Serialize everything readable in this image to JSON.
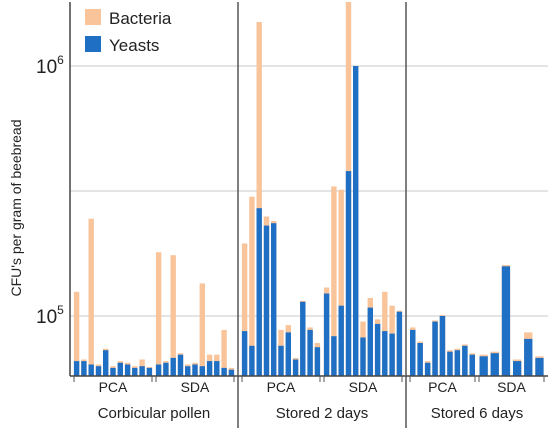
{
  "chart_data": {
    "type": "bar",
    "stacked": true,
    "y_scale": "log",
    "ylabel": "CFU's per gram of beebread",
    "yticks": [
      {
        "value": 100000,
        "base": "10",
        "exp": "5"
      },
      {
        "value": 1000000,
        "base": "10",
        "exp": "6"
      }
    ],
    "ylim": [
      60000,
      2000000
    ],
    "grid": true,
    "legend_position": "top-left",
    "colors": {
      "bacteria": "#F9C49A",
      "yeasts": "#1F6FC5"
    },
    "series": [
      {
        "name": "Bacteria",
        "color": "#F9C49A"
      },
      {
        "name": "Yeasts",
        "color": "#1F6FC5"
      }
    ],
    "groups": [
      {
        "name": "Corbicular pollen",
        "subgroups": [
          {
            "name": "PCA",
            "bars": [
              {
                "total": 125000,
                "yeasts": 66000
              },
              {
                "total": 67000,
                "yeasts": 66000
              },
              {
                "total": 245000,
                "yeasts": 64000
              },
              {
                "total": 64000,
                "yeasts": 63000
              },
              {
                "total": 74000,
                "yeasts": 73000
              },
              {
                "total": 63000,
                "yeasts": 62000
              },
              {
                "total": 66000,
                "yeasts": 65000
              },
              {
                "total": 65000,
                "yeasts": 64000
              },
              {
                "total": 63000,
                "yeasts": 62000
              },
              {
                "total": 67000,
                "yeasts": 63000
              },
              {
                "total": 62500,
                "yeasts": 62000
              }
            ]
          },
          {
            "name": "SDA",
            "bars": [
              {
                "total": 180000,
                "yeasts": 64000
              },
              {
                "total": 66000,
                "yeasts": 65000
              },
              {
                "total": 175000,
                "yeasts": 68000
              },
              {
                "total": 71000,
                "yeasts": 70000
              },
              {
                "total": 64000,
                "yeasts": 63000
              },
              {
                "total": 65000,
                "yeasts": 64000
              },
              {
                "total": 135000,
                "yeasts": 63000
              },
              {
                "total": 70000,
                "yeasts": 66000
              },
              {
                "total": 70000,
                "yeasts": 66000
              },
              {
                "total": 88000,
                "yeasts": 62000
              },
              {
                "total": 62000,
                "yeasts": 61000
              }
            ]
          }
        ]
      },
      {
        "name": "Stored 2 days",
        "subgroups": [
          {
            "name": "PCA",
            "bars": [
              {
                "total": 195000,
                "yeasts": 87000
              },
              {
                "total": 300000,
                "yeasts": 76000
              },
              {
                "total": 1500000,
                "yeasts": 270000
              },
              {
                "total": 250000,
                "yeasts": 230000
              },
              {
                "total": 240000,
                "yeasts": 235000
              },
              {
                "total": 88000,
                "yeasts": 76000
              },
              {
                "total": 92000,
                "yeasts": 86000
              },
              {
                "total": 68000,
                "yeasts": 67000
              },
              {
                "total": 115000,
                "yeasts": 114000
              },
              {
                "total": 90000,
                "yeasts": 88000
              },
              {
                "total": 78000,
                "yeasts": 75000
              }
            ]
          },
          {
            "name": "SDA",
            "bars": [
              {
                "total": 130000,
                "yeasts": 123000
              },
              {
                "total": 330000,
                "yeasts": 83000
              },
              {
                "total": 320000,
                "yeasts": 110000
              },
              {
                "total": 2000000,
                "yeasts": 380000
              },
              {
                "total": 380000,
                "yeasts": 1000000
              },
              {
                "total": 95000,
                "yeasts": 82000
              },
              {
                "total": 118000,
                "yeasts": 108000
              },
              {
                "total": 97000,
                "yeasts": 93000
              },
              {
                "total": 125000,
                "yeasts": 87000
              },
              {
                "total": 110000,
                "yeasts": 85000
              },
              {
                "total": 105000,
                "yeasts": 104000
              }
            ]
          }
        ]
      },
      {
        "name": "Stored 6 days",
        "subgroups": [
          {
            "name": "PCA",
            "bars": [
              {
                "total": 90000,
                "yeasts": 88000
              },
              {
                "total": 79000,
                "yeasts": 78000
              },
              {
                "total": 66000,
                "yeasts": 65000
              },
              {
                "total": 96000,
                "yeasts": 95000
              },
              {
                "total": 101000,
                "yeasts": 100000
              },
              {
                "total": 73000,
                "yeasts": 72000
              },
              {
                "total": 74000,
                "yeasts": 73000
              },
              {
                "total": 77000,
                "yeasts": 76000
              },
              {
                "total": 71000,
                "yeasts": 70000
              }
            ]
          },
          {
            "name": "SDA",
            "bars": [
              {
                "total": 70000,
                "yeasts": 69000
              },
              {
                "total": 72000,
                "yeasts": 71000
              },
              {
                "total": 160000,
                "yeasts": 158000
              },
              {
                "total": 67000,
                "yeasts": 66000
              },
              {
                "total": 86000,
                "yeasts": 81000
              },
              {
                "total": 69000,
                "yeasts": 68000
              }
            ]
          }
        ]
      }
    ]
  }
}
